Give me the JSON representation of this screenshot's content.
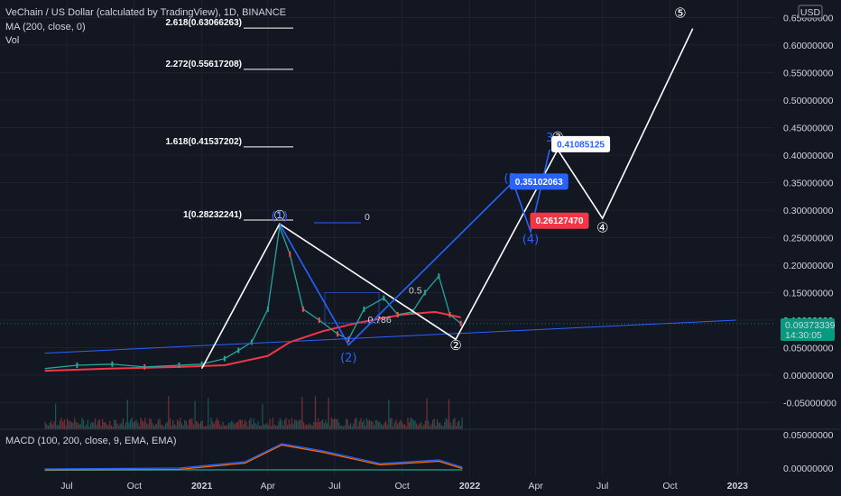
{
  "header": {
    "title": "VeChain / US Dollar (calculated by TradingView), 1D, BINANCE",
    "indicator_ma": "MA (200, close, 0)",
    "indicator_vol": "Vol"
  },
  "currency_badge": "USD",
  "price_badge": {
    "price": "0.09373339",
    "countdown": "14:30:05"
  },
  "macd": {
    "label": "MACD (100, 200, close, 9, EMA, EMA)",
    "ticks": [
      "0.05000000",
      "0.00000000"
    ]
  },
  "colors": {
    "background": "#131722",
    "up": "#26a69a",
    "down": "#ef5350",
    "ma": "#f23645",
    "wave_blue": "#2962ff",
    "wave_white": "#ffffff",
    "price_badge": "#089981",
    "trendline": "#2962ff"
  },
  "chart_data": {
    "type": "line",
    "symbol": "VETUSD",
    "timeframe": "1D",
    "exchange": "BINANCE",
    "yscale": "linear",
    "ylim": [
      -0.08,
      0.65
    ],
    "y_ticks": [
      "0.65000000",
      "0.60000000",
      "0.55000000",
      "0.50000000",
      "0.45000000",
      "0.40000000",
      "0.35000000",
      "0.30000000",
      "0.25000000",
      "0.20000000",
      "0.15000000",
      "0.10000000",
      "0.05000000",
      "0.00000000",
      "-0.05000000"
    ],
    "x_ticks": [
      "Jul",
      "Oct",
      "2021",
      "Apr",
      "Jul",
      "Oct",
      "2022",
      "Apr",
      "Jul",
      "Oct",
      "2023"
    ],
    "price_series": {
      "dates": [
        "2020-06-01",
        "2020-07-15",
        "2020-09-01",
        "2020-10-15",
        "2020-12-01",
        "2021-01-01",
        "2021-02-01",
        "2021-02-20",
        "2021-03-10",
        "2021-04-01",
        "2021-04-17",
        "2021-05-01",
        "2021-05-19",
        "2021-06-10",
        "2021-07-05",
        "2021-07-20",
        "2021-08-10",
        "2021-09-06",
        "2021-09-25",
        "2021-10-15",
        "2021-11-01",
        "2021-11-20",
        "2021-12-05",
        "2021-12-20"
      ],
      "close": [
        0.012,
        0.018,
        0.02,
        0.015,
        0.018,
        0.02,
        0.03,
        0.045,
        0.06,
        0.12,
        0.27,
        0.22,
        0.12,
        0.1,
        0.075,
        0.065,
        0.12,
        0.14,
        0.11,
        0.115,
        0.15,
        0.18,
        0.11,
        0.094
      ]
    },
    "ma_series": {
      "dates": [
        "2020-06-01",
        "2020-09-01",
        "2020-12-01",
        "2021-02-01",
        "2021-04-01",
        "2021-05-01",
        "2021-06-15",
        "2021-08-01",
        "2021-10-01",
        "2021-11-15",
        "2021-12-20"
      ],
      "values": [
        0.008,
        0.012,
        0.015,
        0.018,
        0.035,
        0.06,
        0.08,
        0.095,
        0.11,
        0.115,
        0.105
      ]
    },
    "white_wave_path": {
      "dates": [
        "2021-01-01",
        "2021-04-17",
        "2021-12-13",
        "2022-05-01",
        "2022-07-01",
        "2022-11-01"
      ],
      "values": [
        0.012,
        0.275,
        0.065,
        0.41,
        0.285,
        0.63
      ]
    },
    "blue_wave_path": {
      "dates": [
        "2021-04-17",
        "2021-07-20",
        "2022-03-01",
        "2022-03-25",
        "2022-04-20"
      ],
      "values": [
        0.275,
        0.055,
        0.351,
        0.261,
        0.41
      ]
    },
    "blue_trendline": {
      "dates": [
        "2020-06-01",
        "2022-12-30"
      ],
      "values": [
        0.04,
        0.1
      ]
    },
    "fib_levels": [
      {
        "label": "2.618(0.63066263)",
        "value": 0.631
      },
      {
        "label": "2.272(0.55617208)",
        "value": 0.556
      },
      {
        "label": "1.618(0.41537202)",
        "value": 0.415
      },
      {
        "label": "1(0.28232241)",
        "value": 0.282
      }
    ],
    "fib_right_label": "0",
    "retracement_labels": [
      {
        "label": "0.5",
        "date": "2021-10-10",
        "value": 0.148
      },
      {
        "label": "0.786",
        "date": "2021-08-15",
        "value": 0.095
      }
    ],
    "wave_labels_white": [
      {
        "label": "①",
        "date": "2021-04-17",
        "value": 0.282
      },
      {
        "label": "②",
        "date": "2021-12-13",
        "value": 0.046
      },
      {
        "label": "③",
        "date": "2022-05-01",
        "value": 0.425
      },
      {
        "label": "④",
        "date": "2022-07-01",
        "value": 0.26
      },
      {
        "label": "⑤",
        "date": "2022-10-15",
        "value": 0.65
      }
    ],
    "wave_labels_blue": [
      {
        "label": "(1)",
        "date": "2021-04-17",
        "value": 0.282
      },
      {
        "label": "(2)",
        "date": "2021-07-20",
        "value": 0.025
      },
      {
        "label": "(3",
        "date": "2022-02-25",
        "value": 0.351
      },
      {
        "label": "(4)",
        "date": "2022-03-25",
        "value": 0.24
      },
      {
        "label": "3",
        "date": "2022-04-20",
        "value": 0.425
      }
    ],
    "price_callouts": [
      {
        "label": "0.41085125",
        "date": "2022-04-23",
        "value": 0.419,
        "style": "white"
      },
      {
        "label": "0.35102063",
        "date": "2022-02-25",
        "value": 0.351,
        "style": "blue"
      },
      {
        "label": "0.26127470",
        "date": "2022-03-25",
        "value": 0.28,
        "style": "red"
      }
    ]
  }
}
